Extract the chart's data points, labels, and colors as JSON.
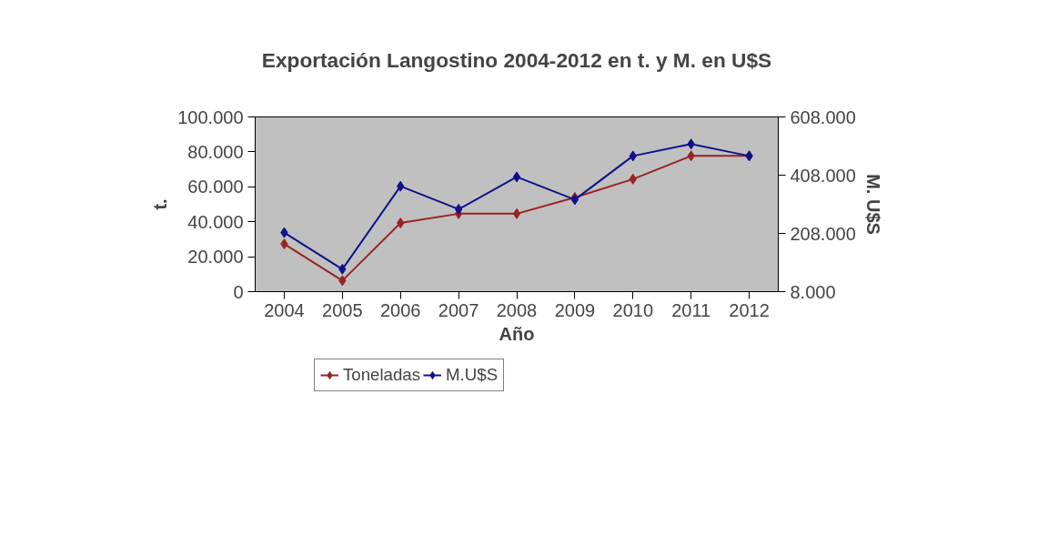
{
  "chart_data": {
    "type": "line",
    "title": "Exportación Langostino 2004-2012 en t. y M. en U$S",
    "xlabel": "Año",
    "ylabel": "t.",
    "y2label": "M. U$S",
    "categories": [
      "2004",
      "2005",
      "2006",
      "2007",
      "2008",
      "2009",
      "2010",
      "2011",
      "2012"
    ],
    "series": [
      {
        "name": "Toneladas",
        "color": "#9b2222",
        "values": [
          27300,
          6300,
          39300,
          44600,
          44600,
          53900,
          64400,
          77700,
          77700
        ]
      },
      {
        "name": "M.U$S",
        "color": "#10108c",
        "axis": "y2",
        "values": [
          211000,
          85000,
          370000,
          291000,
          402000,
          324000,
          474000,
          515000,
          474000
        ]
      }
    ],
    "ylim": [
      0,
      100000
    ],
    "yticks": [
      {
        "value": 0,
        "label": "0"
      },
      {
        "value": 20000,
        "label": "20.000"
      },
      {
        "value": 40000,
        "label": "40.000"
      },
      {
        "value": 60000,
        "label": "60.000"
      },
      {
        "value": 80000,
        "label": "80.000"
      },
      {
        "value": 100000,
        "label": "100.000"
      }
    ],
    "y2lim": [
      8000,
      608000
    ],
    "y2ticks": [
      {
        "value": 8000,
        "label": "8.000"
      },
      {
        "value": 208000,
        "label": "208.000"
      },
      {
        "value": 408000,
        "label": "408.000"
      },
      {
        "value": 608000,
        "label": "608.000"
      }
    ],
    "legend": "bottom",
    "grid": false,
    "marker": "diamond",
    "line_style": "solid"
  }
}
